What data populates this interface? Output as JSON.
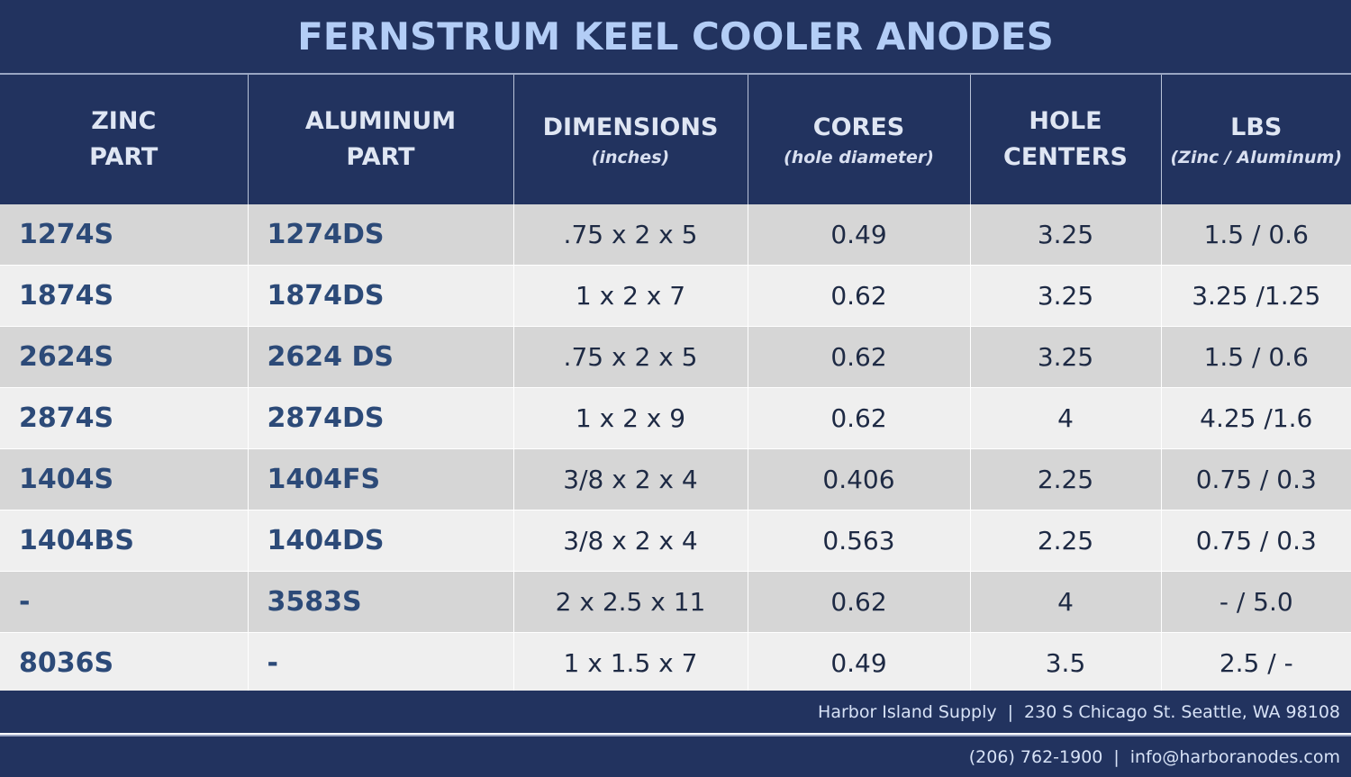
{
  "title": "FERNSTRUM KEEL COOLER ANODES",
  "headers": [
    {
      "main": "ZINC\nPART",
      "sub": ""
    },
    {
      "main": "ALUMINUM\nPART",
      "sub": ""
    },
    {
      "main": "DIMENSIONS",
      "sub": "(inches)"
    },
    {
      "main": "CORES",
      "sub": "(hole diameter)"
    },
    {
      "main": "HOLE\nCENTERS",
      "sub": ""
    },
    {
      "main": "LBS",
      "sub": "(Zinc / Aluminum)"
    }
  ],
  "rows": [
    {
      "zinc": "1274S",
      "aluminum": "1274DS",
      "dimensions": ".75 x 2 x 5",
      "cores": "0.49",
      "hole_centers": "3.25",
      "lbs": "1.5 / 0.6"
    },
    {
      "zinc": "1874S",
      "aluminum": "1874DS",
      "dimensions": "1 x 2 x 7",
      "cores": "0.62",
      "hole_centers": "3.25",
      "lbs": "3.25 /1.25"
    },
    {
      "zinc": "2624S",
      "aluminum": "2624 DS",
      "dimensions": ".75 x 2 x 5",
      "cores": "0.62",
      "hole_centers": "3.25",
      "lbs": "1.5 / 0.6"
    },
    {
      "zinc": "2874S",
      "aluminum": "2874DS",
      "dimensions": "1 x 2 x 9",
      "cores": "0.62",
      "hole_centers": "4",
      "lbs": "4.25 /1.6"
    },
    {
      "zinc": "1404S",
      "aluminum": "1404FS",
      "dimensions": "3/8 x 2 x 4",
      "cores": "0.406",
      "hole_centers": "2.25",
      "lbs": "0.75 / 0.3"
    },
    {
      "zinc": "1404BS",
      "aluminum": "1404DS",
      "dimensions": "3/8 x 2 x 4",
      "cores": "0.563",
      "hole_centers": "2.25",
      "lbs": "0.75 / 0.3"
    },
    {
      "zinc": "-",
      "aluminum": "3583S",
      "dimensions": "2 x 2.5 x 11",
      "cores": "0.62",
      "hole_centers": "4",
      "lbs": "- / 5.0"
    },
    {
      "zinc": "8036S",
      "aluminum": "-",
      "dimensions": "1 x 1.5 x 7",
      "cores": "0.49",
      "hole_centers": "3.5",
      "lbs": "2.5 / -"
    }
  ],
  "footer": {
    "company": "Harbor Island Supply",
    "address": "230 S Chicago St. Seattle, WA 98108",
    "phone": "(206) 762-1900",
    "email": "info@harboranodes.com",
    "separator": "|"
  }
}
